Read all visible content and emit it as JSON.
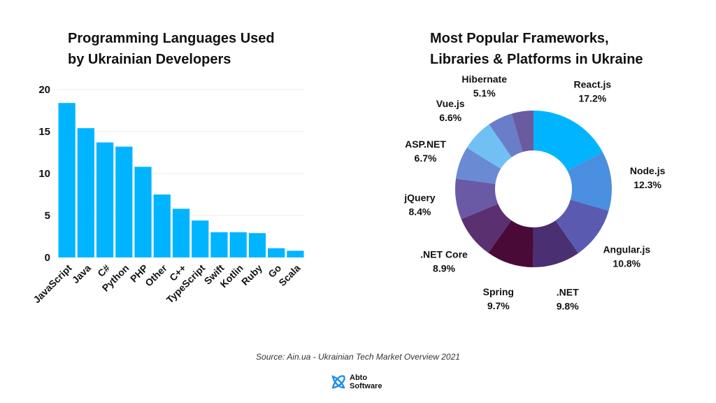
{
  "chart_data": [
    {
      "type": "bar",
      "title": "Programming Languages Used by Ukrainian Developers",
      "title_lines": [
        "Programming Languages Used",
        "by Ukrainian Developers"
      ],
      "categories": [
        "JavaScript",
        "Java",
        "C#",
        "Python",
        "PHP",
        "Other",
        "C++",
        "TypeScript",
        "Swift",
        "Kotlin",
        "Ruby",
        "Go",
        "Scala"
      ],
      "values": [
        18.4,
        15.4,
        13.7,
        13.2,
        10.8,
        7.5,
        5.8,
        4.4,
        3.0,
        3.0,
        2.9,
        1.1,
        0.8
      ],
      "yticks": [
        0,
        5,
        10,
        15,
        20
      ],
      "ylim": [
        0,
        20
      ],
      "xlabel": "",
      "ylabel": "",
      "grid": true,
      "color": "#00b4ff"
    },
    {
      "type": "pie",
      "variant": "donut",
      "title": "Most Popular Frameworks, Libraries & Platforms in Ukraine",
      "title_lines": [
        "Most Popular Frameworks,",
        "Libraries & Platforms in Ukraine"
      ],
      "slices": [
        {
          "label": "React.js",
          "value": 17.2,
          "value_label": "17.2%",
          "color": "#00b4ff"
        },
        {
          "label": "Node.js",
          "value": 12.3,
          "value_label": "12.3%",
          "color": "#4a8fe0"
        },
        {
          "label": "Angular.js",
          "value": 10.8,
          "value_label": "10.8%",
          "color": "#5a5bb0"
        },
        {
          "label": ".NET",
          "value": 9.8,
          "value_label": "9.8%",
          "color": "#4a2f73"
        },
        {
          "label": "Spring",
          "value": 9.7,
          "value_label": "9.7%",
          "color": "#4a0a38"
        },
        {
          "label": ".NET Core",
          "value": 8.9,
          "value_label": "8.9%",
          "color": "#5a3070"
        },
        {
          "label": "jQuery",
          "value": 8.4,
          "value_label": "8.4%",
          "color": "#6a5aa6"
        },
        {
          "label": "ASP.NET",
          "value": 6.7,
          "value_label": "6.7%",
          "color": "#6a8ad4"
        },
        {
          "label": "Vue.js",
          "value": 6.6,
          "value_label": "6.6%",
          "color": "#70c0f4"
        },
        {
          "label": "Hibernate",
          "value": 5.1,
          "value_label": "5.1%",
          "color": "#6a7dc8"
        },
        {
          "label": "",
          "value": 4.5,
          "value_label": "",
          "color": "#6a5aa0"
        }
      ]
    }
  ],
  "source": "Source: Ain.ua - Ukrainian Tech Market Overview 2021",
  "brand": {
    "name_line1": "Abto",
    "name_line2": "Software",
    "logo_icon": "abto-software-logo-icon",
    "logo_color": "#1f8fe8"
  }
}
